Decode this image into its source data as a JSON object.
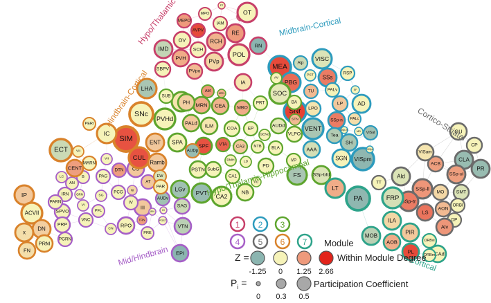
{
  "modules": [
    {
      "id": 1,
      "name": "Hypo/Thalamic",
      "color": "#c7406a"
    },
    {
      "id": 2,
      "name": "Midbrain-Cortical",
      "color": "#2d9bbd"
    },
    {
      "id": 3,
      "name": "Hypo/Thalamic-Hippocampal",
      "color": "#5ea52e"
    },
    {
      "id": 4,
      "name": "Mid/Hindbrain",
      "color": "#a65fc7"
    },
    {
      "id": 5,
      "name": "Cortico-Striatal",
      "color": "#6b6b6b"
    },
    {
      "id": 6,
      "name": "Hindbrain-Cortical",
      "color": "#d9822b"
    },
    {
      "id": 7,
      "name": "Cortical",
      "color": "#2ea38a"
    }
  ],
  "module_labels": [
    {
      "text": "Hypo/Thalamic",
      "module": 1
    },
    {
      "text": "Midbrain-Cortical",
      "module": 2
    },
    {
      "text": "Hindbrain-Cortical",
      "module": 6
    },
    {
      "text": "Cortico-Striatal",
      "module": 5
    },
    {
      "text": "Hypo/Thalamic-Hippocampal",
      "module": 3
    },
    {
      "text": "Mid/Hindbrain",
      "module": 4
    },
    {
      "text": "Cortical",
      "module": 7
    }
  ],
  "nodes": [
    {
      "l": "PT",
      "m": 1,
      "z": 0
    },
    {
      "l": "MPO",
      "m": 1,
      "z": 0
    },
    {
      "l": "ADP",
      "m": 1,
      "z": 0
    },
    {
      "l": "MEPO",
      "m": 1,
      "z": 1.25
    },
    {
      "l": "AVPV",
      "m": 1,
      "z": 2.2
    },
    {
      "l": "IAM",
      "m": 1,
      "z": 0
    },
    {
      "l": "OT",
      "m": 1,
      "z": 0
    },
    {
      "l": "RCH",
      "m": 1,
      "z": 0.9
    },
    {
      "l": "RE",
      "m": 1,
      "z": 1.25
    },
    {
      "l": "OV",
      "m": 1,
      "z": 0
    },
    {
      "l": "IMD",
      "m": 1,
      "z": -0.6
    },
    {
      "l": "SCH",
      "m": 1,
      "z": 0
    },
    {
      "l": "POL",
      "m": 1,
      "z": 0
    },
    {
      "l": "RN",
      "m": 1,
      "z": -1.25
    },
    {
      "l": "PVH",
      "m": 1,
      "z": 1.0
    },
    {
      "l": "PVp",
      "m": 1,
      "z": 0.4
    },
    {
      "l": "SBPV",
      "m": 1,
      "z": 0
    },
    {
      "l": "PVpo",
      "m": 1,
      "z": 0.8
    },
    {
      "l": "IA",
      "m": 1,
      "z": 0.2
    },
    {
      "l": "MEA",
      "m": 2,
      "z": 2.2
    },
    {
      "l": "VISC",
      "m": 2,
      "z": -0.3
    },
    {
      "l": "PBG",
      "m": 2,
      "z": 1.8
    },
    {
      "l": "Alp",
      "m": 2,
      "z": -0.5
    },
    {
      "l": "PST",
      "m": 2,
      "z": 0
    },
    {
      "l": "SSs",
      "m": 2,
      "z": 1.6
    },
    {
      "l": "RSP",
      "m": 2,
      "z": 0
    },
    {
      "l": "TU",
      "m": 2,
      "z": 0.8
    },
    {
      "l": "PALv",
      "m": 2,
      "z": 0
    },
    {
      "l": "SNr",
      "m": 2,
      "z": 2.3
    },
    {
      "l": "LPO",
      "m": 2,
      "z": 0.2
    },
    {
      "l": "LP",
      "m": 2,
      "z": 0.6
    },
    {
      "l": "AD",
      "m": 2,
      "z": 0
    },
    {
      "l": "SSp-n",
      "m": 2,
      "z": 1.6
    },
    {
      "l": "PALc",
      "m": 2,
      "z": 0.3
    },
    {
      "l": "VISal",
      "m": 2,
      "z": -1.0
    },
    {
      "l": "VENT",
      "m": 2,
      "z": -0.9
    },
    {
      "l": "Tea",
      "m": 2,
      "z": -0.8
    },
    {
      "l": "AAA",
      "m": 2,
      "z": -0.4
    },
    {
      "l": "SH",
      "m": 2,
      "z": -0.9
    },
    {
      "l": "SGN",
      "m": 2,
      "z": 0
    },
    {
      "l": "VISpm",
      "m": 2,
      "z": -1.2
    },
    {
      "l": "SF",
      "m": 2,
      "z": 0
    },
    {
      "l": "SSp-m",
      "m": 2,
      "z": 0
    },
    {
      "l": "MD",
      "m": 2,
      "z": 0
    },
    {
      "l": "VISpl",
      "m": 2,
      "z": 0
    },
    {
      "l": "ZI",
      "m": 3,
      "z": 0.2
    },
    {
      "l": "AM",
      "m": 3,
      "z": 1.3
    },
    {
      "l": "MRN",
      "m": 3,
      "z": 1.0
    },
    {
      "l": "CEA",
      "m": 3,
      "z": 0.9
    },
    {
      "l": "MBO",
      "m": 3,
      "z": 1.0
    },
    {
      "l": "PRT",
      "m": 3,
      "z": 0
    },
    {
      "l": "SOC",
      "m": 3,
      "z": -0.2
    },
    {
      "l": "ILM",
      "m": 3,
      "z": 0.2
    },
    {
      "l": "COA",
      "m": 3,
      "z": 0
    },
    {
      "l": "EP",
      "m": 3,
      "z": 0
    },
    {
      "l": "SPF",
      "m": 3,
      "z": 2.1
    },
    {
      "l": "VTA",
      "m": 3,
      "z": 1.9
    },
    {
      "l": "CA3",
      "m": 3,
      "z": 0.6
    },
    {
      "l": "LD",
      "m": 3,
      "z": 0
    },
    {
      "l": "NTB",
      "m": 3,
      "z": 0
    },
    {
      "l": "BLA",
      "m": 3,
      "z": 0
    },
    {
      "l": "PALd",
      "m": 3,
      "z": 0.6
    },
    {
      "l": "AUDd",
      "m": 3,
      "z": -0.2
    },
    {
      "l": "VLPO",
      "m": 3,
      "z": 0
    },
    {
      "l": "PD",
      "m": 3,
      "z": 0
    },
    {
      "l": "FS",
      "m": 3,
      "z": -0.9
    },
    {
      "l": "PSTN",
      "m": 3,
      "z": 0
    },
    {
      "l": "SubG",
      "m": 3,
      "z": 0
    },
    {
      "l": "CA1",
      "m": 3,
      "z": 0
    },
    {
      "l": "CA2",
      "m": 3,
      "z": 0
    },
    {
      "l": "NB",
      "m": 3,
      "z": 0
    },
    {
      "l": "PVT",
      "m": 3,
      "z": -1.1
    },
    {
      "l": "LGv",
      "m": 3,
      "z": -1.0
    },
    {
      "l": "PO",
      "m": 3,
      "z": 0
    },
    {
      "l": "VP",
      "m": 3,
      "z": 0
    },
    {
      "l": "DMH",
      "m": 3,
      "z": 0
    },
    {
      "l": "PH",
      "m": 3,
      "z": 0.5
    },
    {
      "l": "PVHd",
      "m": 3,
      "z": 0
    },
    {
      "l": "BA",
      "m": 3,
      "z": 0
    },
    {
      "l": "SSp-bfd",
      "m": 3,
      "z": -0.3
    },
    {
      "l": "SPA",
      "m": 3,
      "z": 0
    },
    {
      "l": "SUB",
      "m": 3,
      "z": 0
    },
    {
      "l": "STN",
      "m": 3,
      "z": 0.8
    },
    {
      "l": "GENd",
      "m": 3,
      "z": 0
    },
    {
      "l": "AV",
      "m": 3,
      "z": 0
    },
    {
      "l": "MPN",
      "m": 3,
      "z": 0.9
    },
    {
      "l": "DTN",
      "m": 4,
      "z": 1.2
    },
    {
      "l": "CS",
      "m": 4,
      "z": 0.6
    },
    {
      "l": "PCG",
      "m": 4,
      "z": 0
    },
    {
      "l": "NI",
      "m": 4,
      "z": 0.4
    },
    {
      "l": "AT",
      "m": 4,
      "z": 0.6
    },
    {
      "l": "AUDv",
      "m": 4,
      "z": -1.0
    },
    {
      "l": "SAG",
      "m": 4,
      "z": -0.5
    },
    {
      "l": "VTN",
      "m": 4,
      "z": -0.7
    },
    {
      "l": "RPO",
      "m": 4,
      "z": 0
    },
    {
      "l": "PRE",
      "m": 4,
      "z": 0
    },
    {
      "l": "EPI",
      "m": 4,
      "z": -1.25
    },
    {
      "l": "III",
      "m": 4,
      "z": 0.6
    },
    {
      "l": "PAG",
      "m": 4,
      "z": 0
    },
    {
      "l": "SG",
      "m": 4,
      "z": 0
    },
    {
      "l": "PFL",
      "m": 4,
      "z": 0
    },
    {
      "l": "CN",
      "m": 4,
      "z": 0
    },
    {
      "l": "B",
      "m": 4,
      "z": 0
    },
    {
      "l": "VNC",
      "m": 4,
      "z": 0
    },
    {
      "l": "GRN",
      "m": 4,
      "z": 0
    },
    {
      "l": "VI",
      "m": 4,
      "z": 0
    },
    {
      "l": "AN",
      "m": 4,
      "z": 0
    },
    {
      "l": "IRN",
      "m": 4,
      "z": 0
    },
    {
      "l": "SPVO",
      "m": 4,
      "z": 0
    },
    {
      "l": "PARN",
      "m": 4,
      "z": 0
    },
    {
      "l": "PRP",
      "m": 4,
      "z": 0
    },
    {
      "l": "PGRN",
      "m": 4,
      "z": 0
    },
    {
      "l": "LC",
      "m": 4,
      "z": 0
    },
    {
      "l": "TRN",
      "m": 4,
      "z": 1.2
    },
    {
      "l": "IV",
      "m": 4,
      "z": 0
    },
    {
      "l": "POST",
      "m": 4,
      "z": 0
    },
    {
      "l": "IPN",
      "m": 4,
      "z": 0
    },
    {
      "l": "VII",
      "m": 4,
      "z": 0
    },
    {
      "l": "IO",
      "m": 4,
      "z": 0
    },
    {
      "l": "GU",
      "m": 5,
      "z": 0
    },
    {
      "l": "CP",
      "m": 5,
      "z": 0
    },
    {
      "l": "CLA",
      "m": 5,
      "z": -1.1
    },
    {
      "l": "PR",
      "m": 5,
      "z": -1.1
    },
    {
      "l": "ACB",
      "m": 5,
      "z": 1.2
    },
    {
      "l": "VISam",
      "m": 5,
      "z": 0.2
    },
    {
      "l": "SSp-ul",
      "m": 5,
      "z": 1.2
    },
    {
      "l": "SMT",
      "m": 5,
      "z": -0.3
    },
    {
      "l": "Ald",
      "m": 5,
      "z": -0.3
    },
    {
      "l": "SSp-ll",
      "m": 5,
      "z": 1.3
    },
    {
      "l": "MO",
      "m": 5,
      "z": 0.4
    },
    {
      "l": "ORBl",
      "m": 5,
      "z": 0
    },
    {
      "l": "DP",
      "m": 5,
      "z": 0
    },
    {
      "l": "SSp-tr",
      "m": 5,
      "z": 1.6
    },
    {
      "l": "AON",
      "m": 5,
      "z": 0.8
    },
    {
      "l": "LS",
      "m": 5,
      "z": 1.7
    },
    {
      "l": "Alv",
      "m": 5,
      "z": 1.3
    },
    {
      "l": "TT",
      "m": 5,
      "z": 0
    },
    {
      "l": "LHA",
      "m": 6,
      "z": -0.9
    },
    {
      "l": "SNc",
      "m": 6,
      "z": 0
    },
    {
      "l": "SIM",
      "m": 6,
      "z": 2.1
    },
    {
      "l": "ENT",
      "m": 6,
      "z": 0.6
    },
    {
      "l": "CUL",
      "m": 6,
      "z": 2.1
    },
    {
      "l": "Ramb",
      "m": 6,
      "z": 0.6
    },
    {
      "l": "EW",
      "m": 6,
      "z": -0.3
    },
    {
      "l": "PAR",
      "m": 6,
      "z": 0
    },
    {
      "l": "IC",
      "m": 6,
      "z": 0
    },
    {
      "l": "ECT",
      "m": 6,
      "z": -0.5
    },
    {
      "l": "VII",
      "m": 6,
      "z": 0
    },
    {
      "l": "PERI",
      "m": 6,
      "z": 0
    },
    {
      "l": "CENT",
      "m": 6,
      "z": 1.2
    },
    {
      "l": "MARN",
      "m": 6,
      "z": 0
    },
    {
      "l": "IP",
      "m": 6,
      "z": 0.6
    },
    {
      "l": "ACVII",
      "m": 6,
      "z": 0
    },
    {
      "l": "DN",
      "m": 6,
      "z": 0.5
    },
    {
      "l": "x",
      "m": 6,
      "z": 0.3
    },
    {
      "l": "FN",
      "m": 6,
      "z": 0.3
    },
    {
      "l": "PRM",
      "m": 6,
      "z": 0
    },
    {
      "l": "AUDp",
      "m": 6,
      "z": -1.1
    },
    {
      "l": "FRP",
      "m": 7,
      "z": -0.4
    },
    {
      "l": "ILA",
      "m": 7,
      "z": 0.4
    },
    {
      "l": "PA",
      "m": 7,
      "z": -1.2
    },
    {
      "l": "PIR",
      "m": 7,
      "z": 0.6
    },
    {
      "l": "MOB",
      "m": 7,
      "z": -0.7
    },
    {
      "l": "AOB",
      "m": 7,
      "z": 1.0
    },
    {
      "l": "PL",
      "m": 7,
      "z": 2.2
    },
    {
      "l": "ORBvl",
      "m": 7,
      "z": 0
    },
    {
      "l": "ACAd",
      "m": 7,
      "z": 0
    },
    {
      "l": "ORBm",
      "m": 7,
      "z": 0
    },
    {
      "l": "LT",
      "m": 7,
      "z": 1.0
    }
  ],
  "legend": {
    "module_numbers": [
      "1",
      "2",
      "3",
      "4",
      "5",
      "6",
      "7"
    ],
    "module_label": "Module",
    "z_label": "Z =",
    "z_values": [
      "-1.25",
      "0",
      "1.25",
      "2.66"
    ],
    "z_desc": "Within Module Degree",
    "z_colors": [
      "#8bb5b0",
      "#f6f3b9",
      "#ee9a7c",
      "#e2231a"
    ],
    "p_label": "P",
    "p_sub": "i",
    "p_eq": " =",
    "p_values": [
      "0",
      "0.3",
      "0.5"
    ],
    "p_desc": "Participation Coefficient"
  }
}
